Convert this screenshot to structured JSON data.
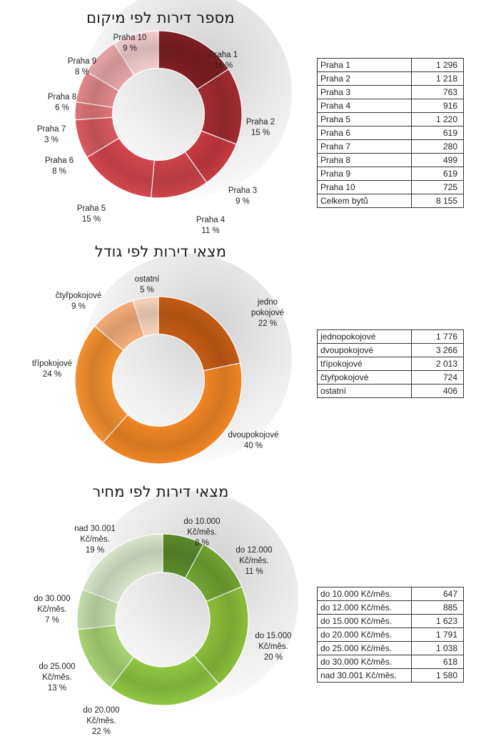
{
  "chart_data": [
    {
      "type": "pie",
      "title": "מספר דירות לפי מיקום",
      "hole": 0.55,
      "categories": [
        "Praha 1",
        "Praha 2",
        "Praha 3",
        "Praha 4",
        "Praha 5",
        "Praha 6",
        "Praha 7",
        "Praha 8",
        "Praha 9",
        "Praha 10"
      ],
      "values": [
        1296,
        1218,
        763,
        916,
        1220,
        619,
        280,
        499,
        619,
        725
      ],
      "percent_labels": [
        "16 %",
        "15 %",
        "9 %",
        "11 %",
        "15 %",
        "8 %",
        "3 %",
        "6 %",
        "8 %",
        "9 %"
      ],
      "colors": [
        "#7e1f24",
        "#a12b31",
        "#c63a40",
        "#cc4348",
        "#d3464c",
        "#d85a5f",
        "#dd7579",
        "#e0888c",
        "#e6a5a8",
        "#f0cccd"
      ],
      "legend": "none",
      "table": {
        "rows": [
          {
            "label": "Praha 1",
            "value": "1 296"
          },
          {
            "label": "Praha 2",
            "value": "1 218"
          },
          {
            "label": "Praha 3",
            "value": "763"
          },
          {
            "label": "Praha 4",
            "value": "916"
          },
          {
            "label": "Praha 5",
            "value": "1 220"
          },
          {
            "label": "Praha 6",
            "value": "619"
          },
          {
            "label": "Praha 7",
            "value": "280"
          },
          {
            "label": "Praha 8",
            "value": "499"
          },
          {
            "label": "Praha 9",
            "value": "619"
          },
          {
            "label": "Praha 10",
            "value": "725"
          },
          {
            "label": "Celkem bytů",
            "value": "8 155"
          }
        ]
      }
    },
    {
      "type": "pie",
      "title": "מצאי דירות לפי גודל",
      "hole": 0.55,
      "categories": [
        "jednopokojové",
        "dvoupokojové",
        "třípokojové",
        "čtyřpokojové",
        "ostatní"
      ],
      "label_lines": [
        [
          "jedno",
          "pokojové"
        ],
        [
          "dvoupokojové"
        ],
        [
          "třípokojové"
        ],
        [
          "čtyřpokojové"
        ],
        [
          "ostatní"
        ]
      ],
      "values": [
        1776,
        3266,
        2013,
        724,
        406
      ],
      "percent_labels": [
        "22 %",
        "40 %",
        "24 %",
        "9 %",
        "5 %"
      ],
      "colors": [
        "#c45b14",
        "#f08524",
        "#f2902f",
        "#f4ad7a",
        "#f8d2b8"
      ],
      "legend": "none",
      "table": {
        "rows": [
          {
            "label": "jednopokojové",
            "value": "1 776"
          },
          {
            "label": "dvoupokojové",
            "value": "3 266"
          },
          {
            "label": "třípokojové",
            "value": "2 013"
          },
          {
            "label": "čtyřpokojové",
            "value": "724"
          },
          {
            "label": "ostatní",
            "value": "406"
          }
        ]
      }
    },
    {
      "type": "pie",
      "title": "מצאי דירות לפי מחיר",
      "hole": 0.55,
      "categories": [
        "do 10.000 Kč/měs.",
        "do 12.000 Kč/měs.",
        "do 15.000 Kč/měs.",
        "do 20.000 Kč/měs.",
        "do 25.000 Kč/měs.",
        "do 30.000 Kč/měs.",
        "nad 30.001 Kč/měs."
      ],
      "label_lines": [
        [
          "do 10.000",
          "Kč/měs."
        ],
        [
          "do 12.000",
          "Kč/měs."
        ],
        [
          "do 15.000",
          "Kč/měs."
        ],
        [
          "do 20.000",
          "Kč/měs."
        ],
        [
          "do 25.000",
          "Kč/měs."
        ],
        [
          "do 30.000",
          "Kč/měs."
        ],
        [
          "nad 30.001",
          "Kč/měs."
        ]
      ],
      "values": [
        647,
        885,
        1623,
        1791,
        1038,
        618,
        1580
      ],
      "percent_labels": [
        "8 %",
        "11 %",
        "20 %",
        "22 %",
        "13 %",
        "7 %",
        "19 %"
      ],
      "colors": [
        "#5b8a2c",
        "#72a333",
        "#8cbd3a",
        "#8fc641",
        "#a9d274",
        "#c2dca8",
        "#d7e3cb"
      ],
      "legend": "none",
      "table": {
        "rows": [
          {
            "label": "do 10.000 Kč/měs.",
            "value": "647"
          },
          {
            "label": "do 12.000 Kč/měs.",
            "value": "885"
          },
          {
            "label": "do 15.000 Kč/měs.",
            "value": "1 623"
          },
          {
            "label": "do 20.000 Kč/měs.",
            "value": "1 791"
          },
          {
            "label": "do 25.000 Kč/měs.",
            "value": "1 038"
          },
          {
            "label": "do 30.000 Kč/měs.",
            "value": "618"
          },
          {
            "label": "nad 30.001 Kč/měs.",
            "value": "1 580"
          }
        ]
      }
    }
  ]
}
